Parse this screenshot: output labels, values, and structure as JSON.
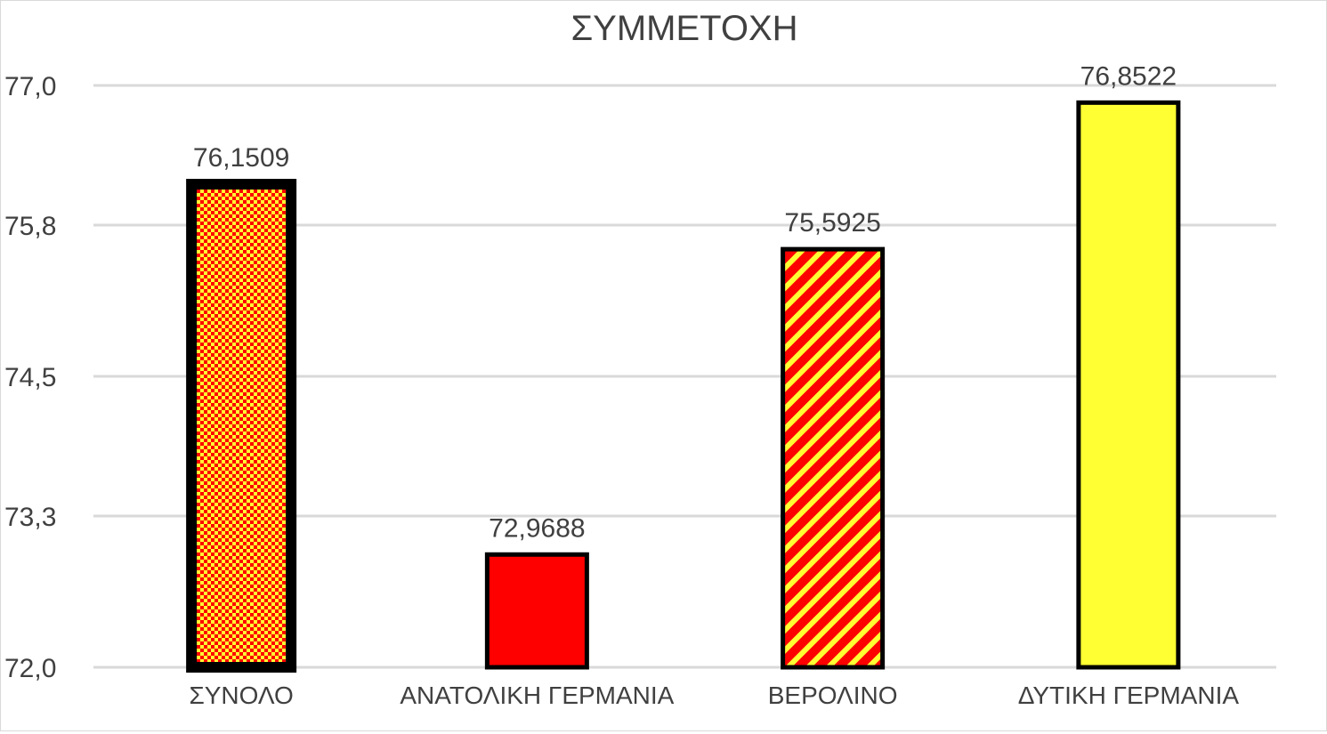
{
  "chart_data": {
    "type": "bar",
    "title": "ΣΥΜΜΕΤΟΧΗ",
    "xlabel": "",
    "ylabel": "",
    "categories": [
      "ΣΥΝΟΛΟ",
      "ΑΝΑΤΟΛΙΚΗ ΓΕΡΜΑΝΙΑ",
      "ΒΕΡΟΛΙΝΟ",
      "ΔΥΤΙΚΗ ΓΕΡΜΑΝΙΑ"
    ],
    "series": [
      {
        "values": [
          76.1509,
          72.9688,
          75.5925,
          76.8522
        ],
        "data_labels": [
          "76,1509",
          "72,9688",
          "75,5925",
          "76,8522"
        ],
        "fills": [
          "checker-red-yellow",
          "solid-red",
          "diagonal-stripes-red-yellow",
          "solid-yellow"
        ]
      }
    ],
    "ylim": [
      72.0,
      77.0
    ],
    "yticks": [
      72.0,
      73.3,
      74.5,
      75.8,
      77.0
    ],
    "ytick_labels": [
      "72,0",
      "73,3",
      "74,5",
      "75,8",
      "77,0"
    ],
    "grid": true,
    "legend": "none",
    "colors": {
      "red": "#ff0000",
      "yellow": "#ffff33",
      "outline": "#000000",
      "grid": "#d9d9d9",
      "text": "#404040"
    }
  }
}
